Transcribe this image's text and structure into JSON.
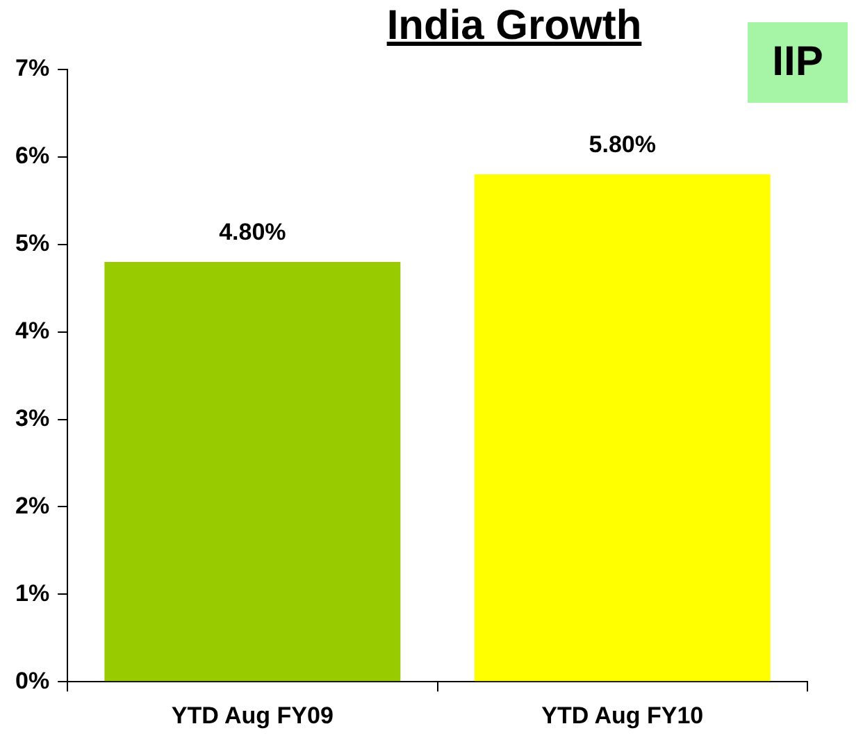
{
  "chart_data": {
    "type": "bar",
    "title": "India Growth",
    "categories": [
      "YTD Aug FY09",
      "YTD Aug FY10"
    ],
    "values": [
      4.8,
      5.8
    ],
    "colors": [
      "#99cc00",
      "#ffff00"
    ],
    "value_labels": [
      "4.80%",
      "5.80%"
    ],
    "ylim": [
      0,
      7
    ],
    "yticks": [
      {
        "value": 0,
        "label": "0%"
      },
      {
        "value": 1,
        "label": "1%"
      },
      {
        "value": 2,
        "label": "2%"
      },
      {
        "value": 3,
        "label": "3%"
      },
      {
        "value": 4,
        "label": "4%"
      },
      {
        "value": 5,
        "label": "5%"
      },
      {
        "value": 6,
        "label": "6%"
      },
      {
        "value": 7,
        "label": "7%"
      }
    ],
    "annotations": [
      "IIP"
    ],
    "grid": false,
    "legend": false
  }
}
